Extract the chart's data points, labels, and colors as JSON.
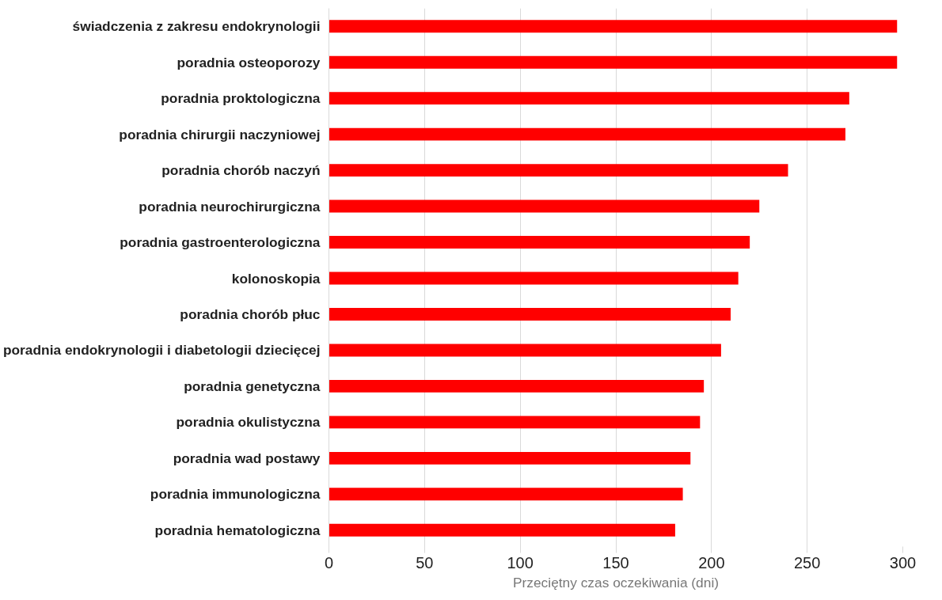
{
  "chart_data": {
    "type": "bar",
    "orientation": "horizontal",
    "categories": [
      "świadczenia z zakresu endokrynologii",
      "poradnia osteoporozy",
      "poradnia proktologiczna",
      "poradnia chirurgii naczyniowej",
      "poradnia chorób naczyń",
      "poradnia neurochirurgiczna",
      "poradnia gastroenterologiczna",
      "kolonoskopia",
      "poradnia chorób płuc",
      "poradnia endokrynologii i diabetologii dziecięcej",
      "poradnia genetyczna",
      "poradnia okulistyczna",
      "poradnia wad postawy",
      "poradnia immunologiczna",
      "poradnia hematologiczna"
    ],
    "values": [
      297,
      297,
      272,
      270,
      240,
      225,
      220,
      214,
      210,
      205,
      196,
      194,
      189,
      185,
      181
    ],
    "color": "#ff0000",
    "xlabel": "Przeciętny czas oczekiwania (dni)",
    "xlim": [
      0,
      300
    ],
    "xticks": [
      0,
      50,
      100,
      150,
      200,
      250,
      300
    ],
    "grid": "x"
  }
}
